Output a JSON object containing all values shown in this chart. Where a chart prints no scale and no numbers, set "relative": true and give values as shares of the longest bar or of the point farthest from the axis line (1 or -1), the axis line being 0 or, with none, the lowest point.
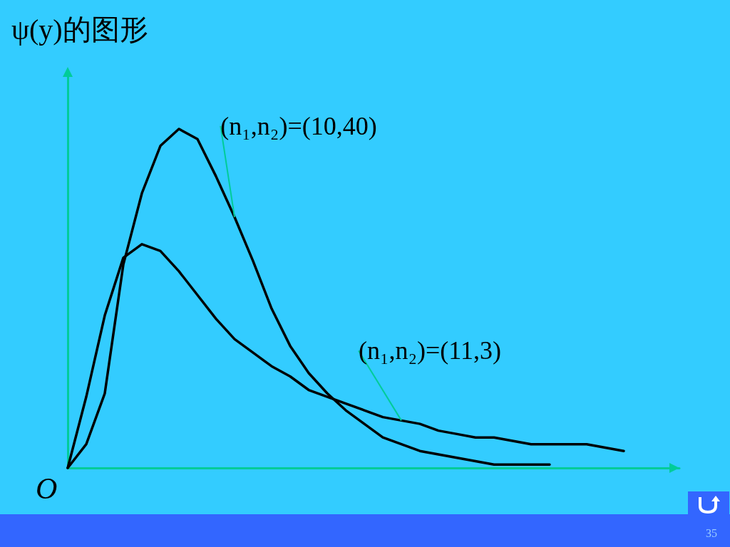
{
  "chart_data": {
    "type": "line",
    "title": "ψ(y)的图形",
    "relative": true,
    "legend": false,
    "grid": false,
    "marker": "none",
    "line_style": "solid",
    "categories": [
      null,
      null,
      null,
      null,
      null,
      null,
      null,
      null,
      null,
      null,
      null,
      null,
      null,
      null,
      null,
      null,
      null,
      null,
      null,
      null,
      null,
      null,
      null,
      null,
      null,
      null,
      null,
      null,
      null,
      null,
      null,
      null,
      null,
      null
    ],
    "series": [
      {
        "name": "(n₁,n₂)=(10,40)",
        "color": "#000000",
        "values": [
          0,
          0.07,
          0.22,
          0.6,
          0.81,
          0.95,
          1,
          0.97,
          0.86,
          0.74,
          0.61,
          0.47,
          0.36,
          0.28,
          0.22,
          0.17,
          0.13,
          0.09,
          0.07,
          0.05,
          0.04,
          0.03,
          0.02,
          0.01,
          0.01,
          0.01,
          0.01,
          null,
          null,
          null,
          null,
          null,
          null,
          null
        ]
      },
      {
        "name": "(n₁,n₂)=(11,3)",
        "color": "#000000",
        "values": [
          0,
          0.21,
          0.45,
          0.62,
          0.66,
          0.64,
          0.58,
          0.51,
          0.44,
          0.38,
          0.34,
          0.3,
          0.27,
          0.23,
          0.21,
          0.19,
          0.17,
          0.15,
          0.14,
          0.13,
          0.11,
          0.1,
          0.09,
          0.09,
          0.08,
          0.07,
          0.07,
          0.07,
          0.07,
          0.06,
          0.05,
          null,
          null,
          null
        ]
      }
    ],
    "annotations": [
      "O",
      "35"
    ]
  }
}
